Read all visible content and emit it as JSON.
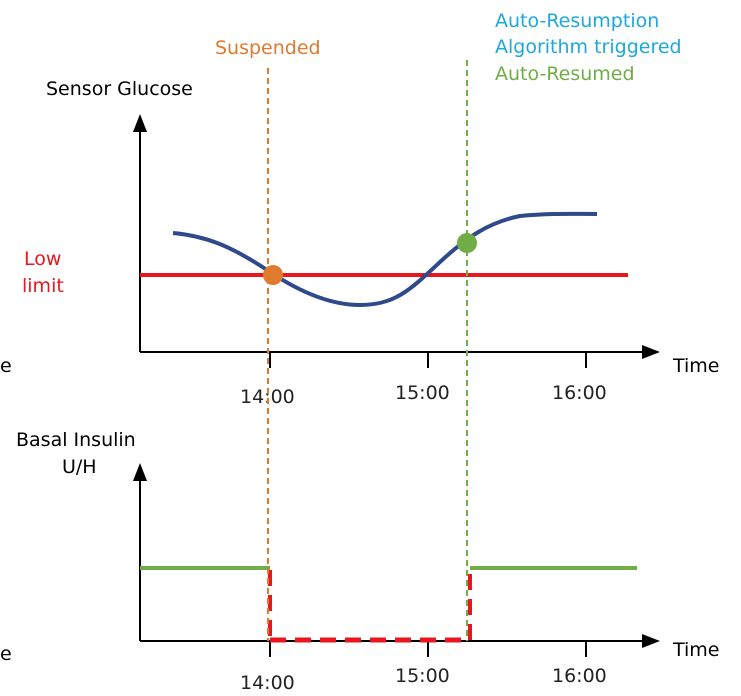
{
  "colors": {
    "suspended": "#E07A2E",
    "auto_resumption": "#1CA8DD",
    "auto_resumed": "#70AD47",
    "low_limit": "#E8171E",
    "glucose_curve": "#2E4A8B",
    "axis": "#000000",
    "basal_suspended": "#E8171E"
  },
  "labels": {
    "auto_resumption_line1": "Auto-Resumption",
    "auto_resumption_line2": "Algorithm triggered",
    "auto_resumed": "Auto-Resumed",
    "suspended": "Suspended",
    "low_limit_line1": "Low",
    "low_limit_line2": "limit",
    "edge_char_top": "e",
    "edge_char_bottom": "e"
  },
  "top_chart": {
    "y_label": "Sensor Glucose",
    "x_label": "Time",
    "ticks": [
      "14:00",
      "15:00",
      "16:00"
    ]
  },
  "bottom_chart": {
    "y_label_line1": "Basal Insulin",
    "y_label_line2": "U/H",
    "x_label": "Time",
    "ticks": [
      "14:00",
      "15:00",
      "16:00"
    ]
  },
  "icons": {
    "suspend_marker": "orange-dot",
    "resume_marker": "green-dot"
  }
}
